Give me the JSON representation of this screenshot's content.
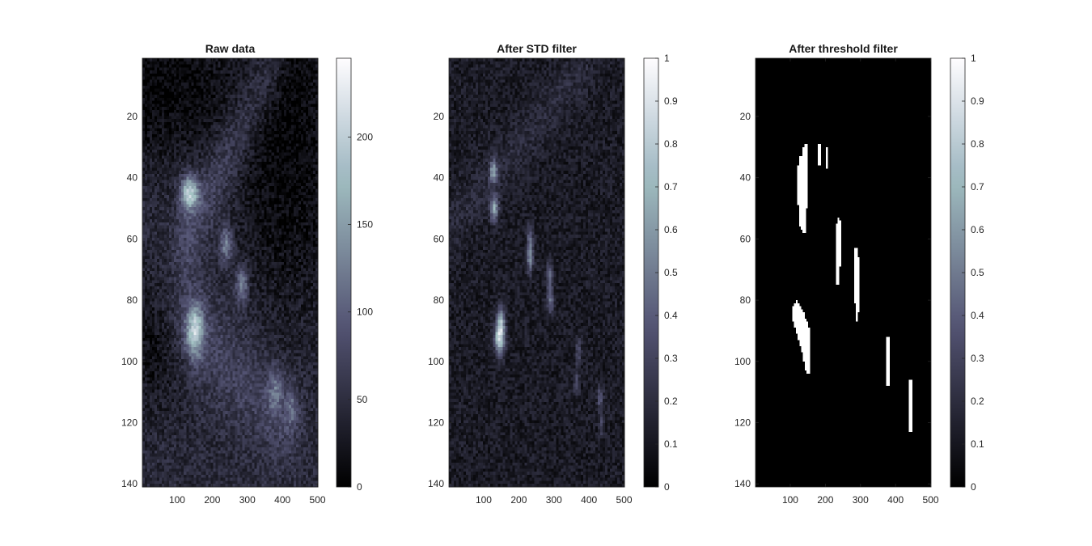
{
  "chart_data": [
    {
      "type": "heatmap",
      "title": "Raw data",
      "xlabel": "",
      "ylabel": "",
      "xlim": [
        1,
        501
      ],
      "ylim": [
        1,
        141
      ],
      "y_reversed": true,
      "xticks": [
        100,
        200,
        300,
        400,
        500
      ],
      "yticks": [
        20,
        40,
        60,
        80,
        100,
        120,
        140
      ],
      "colormap": "bone",
      "colorbar": {
        "lim": [
          0,
          245
        ],
        "ticks": [
          0,
          50,
          100,
          150,
          200
        ]
      },
      "background_value": 45,
      "features": [
        {
          "kind": "dark",
          "x": 60,
          "y": 10,
          "sx": 140,
          "sy": 18,
          "amp": -40
        },
        {
          "kind": "dark",
          "x": 420,
          "y": 30,
          "sx": 110,
          "sy": 40,
          "amp": -40
        },
        {
          "kind": "dark",
          "x": 40,
          "y": 95,
          "sx": 60,
          "sy": 15,
          "amp": -30
        },
        {
          "kind": "band",
          "x1": 130,
          "y1": 60,
          "x2": 360,
          "y2": 5,
          "width": 28,
          "amp": 35
        },
        {
          "kind": "band",
          "x1": 120,
          "y1": 85,
          "x2": 400,
          "y2": 120,
          "width": 40,
          "amp": 30
        },
        {
          "kind": "spot",
          "x": 135,
          "y": 45,
          "sx": 18,
          "sy": 4,
          "amp": 150
        },
        {
          "kind": "spot",
          "x": 150,
          "y": 90,
          "sx": 18,
          "sy": 6,
          "amp": 140
        },
        {
          "kind": "spot",
          "x": 240,
          "y": 62,
          "sx": 12,
          "sy": 4,
          "amp": 90
        },
        {
          "kind": "spot",
          "x": 285,
          "y": 75,
          "sx": 12,
          "sy": 4,
          "amp": 90
        },
        {
          "kind": "spot",
          "x": 380,
          "y": 110,
          "sx": 14,
          "sy": 5,
          "amp": 60
        },
        {
          "kind": "spot",
          "x": 425,
          "y": 115,
          "sx": 12,
          "sy": 5,
          "amp": 50
        }
      ],
      "noise": 22
    },
    {
      "type": "heatmap",
      "title": "After STD filter",
      "xlabel": "",
      "ylabel": "",
      "xlim": [
        1,
        501
      ],
      "ylim": [
        1,
        141
      ],
      "y_reversed": true,
      "xticks": [
        100,
        200,
        300,
        400,
        500
      ],
      "yticks": [
        20,
        40,
        60,
        80,
        100,
        120,
        140
      ],
      "colormap": "bone",
      "colorbar": {
        "lim": [
          0,
          1
        ],
        "ticks": [
          0,
          0.1,
          0.2,
          0.3,
          0.4,
          0.5,
          0.6,
          0.7,
          0.8,
          0.9,
          1
        ]
      },
      "background_value": 0.12,
      "features": [
        {
          "kind": "band",
          "x1": 10,
          "y1": 55,
          "x2": 380,
          "y2": 5,
          "width": 22,
          "amp": 0.07
        },
        {
          "kind": "spot",
          "x": 128,
          "y": 38,
          "sx": 7,
          "sy": 2.5,
          "amp": 0.5
        },
        {
          "kind": "spot",
          "x": 130,
          "y": 50,
          "sx": 8,
          "sy": 3,
          "amp": 0.5
        },
        {
          "kind": "spot",
          "x": 232,
          "y": 60,
          "sx": 6,
          "sy": 3,
          "amp": 0.35
        },
        {
          "kind": "spot",
          "x": 232,
          "y": 67,
          "sx": 6,
          "sy": 3,
          "amp": 0.4
        },
        {
          "kind": "spot",
          "x": 288,
          "y": 72,
          "sx": 6,
          "sy": 3,
          "amp": 0.35
        },
        {
          "kind": "spot",
          "x": 290,
          "y": 80,
          "sx": 6,
          "sy": 3,
          "amp": 0.35
        },
        {
          "kind": "spot",
          "x": 145,
          "y": 92,
          "sx": 10,
          "sy": 4,
          "amp": 0.75
        },
        {
          "kind": "spot",
          "x": 150,
          "y": 86,
          "sx": 7,
          "sy": 3,
          "amp": 0.4
        },
        {
          "kind": "spot",
          "x": 370,
          "y": 97,
          "sx": 5,
          "sy": 3,
          "amp": 0.25
        },
        {
          "kind": "spot",
          "x": 365,
          "y": 107,
          "sx": 5,
          "sy": 3,
          "amp": 0.2
        },
        {
          "kind": "spot",
          "x": 432,
          "y": 112,
          "sx": 6,
          "sy": 3,
          "amp": 0.25
        },
        {
          "kind": "spot",
          "x": 435,
          "y": 120,
          "sx": 5,
          "sy": 3,
          "amp": 0.2
        }
      ],
      "noise": 0.08
    },
    {
      "type": "heatmap",
      "title": "After threshold filter",
      "xlabel": "",
      "ylabel": "",
      "xlim": [
        1,
        501
      ],
      "ylim": [
        1,
        141
      ],
      "y_reversed": true,
      "xticks": [
        100,
        200,
        300,
        400,
        500
      ],
      "yticks": [
        20,
        40,
        60,
        80,
        100,
        120,
        140
      ],
      "colormap": "bone",
      "colorbar": {
        "lim": [
          0,
          1
        ],
        "ticks": [
          0,
          0.1,
          0.2,
          0.3,
          0.4,
          0.5,
          0.6,
          0.7,
          0.8,
          0.9,
          1
        ]
      },
      "background_value": 0,
      "regions": [
        [
          [
            140,
            29
          ],
          [
            150,
            29
          ],
          [
            152,
            33
          ],
          [
            150,
            40
          ],
          [
            148,
            48
          ],
          [
            146,
            58
          ],
          [
            136,
            58
          ],
          [
            125,
            55
          ],
          [
            122,
            48
          ],
          [
            120,
            40
          ],
          [
            125,
            33
          ],
          [
            133,
            33
          ]
        ],
        [
          [
            178,
            29
          ],
          [
            186,
            29
          ],
          [
            186,
            36
          ],
          [
            178,
            36
          ]
        ],
        [
          [
            202,
            30
          ],
          [
            208,
            30
          ],
          [
            208,
            37
          ],
          [
            202,
            37
          ]
        ],
        [
          [
            233,
            53
          ],
          [
            242,
            53
          ],
          [
            244,
            58
          ],
          [
            243,
            68
          ],
          [
            240,
            75
          ],
          [
            232,
            75
          ],
          [
            230,
            65
          ]
        ],
        [
          [
            283,
            63
          ],
          [
            293,
            63
          ],
          [
            297,
            72
          ],
          [
            296,
            82
          ],
          [
            292,
            87
          ],
          [
            285,
            87
          ],
          [
            284,
            75
          ],
          [
            282,
            68
          ]
        ],
        [
          [
            108,
            82
          ],
          [
            120,
            80
          ],
          [
            133,
            83
          ],
          [
            145,
            86
          ],
          [
            155,
            89
          ],
          [
            157,
            98
          ],
          [
            157,
            104
          ],
          [
            145,
            104
          ],
          [
            138,
            100
          ],
          [
            130,
            95
          ],
          [
            120,
            92
          ],
          [
            110,
            88
          ],
          [
            106,
            85
          ]
        ],
        [
          [
            373,
            92
          ],
          [
            381,
            92
          ],
          [
            381,
            108
          ],
          [
            373,
            108
          ]
        ],
        [
          [
            438,
            106
          ],
          [
            446,
            106
          ],
          [
            446,
            123
          ],
          [
            438,
            123
          ]
        ]
      ]
    }
  ]
}
